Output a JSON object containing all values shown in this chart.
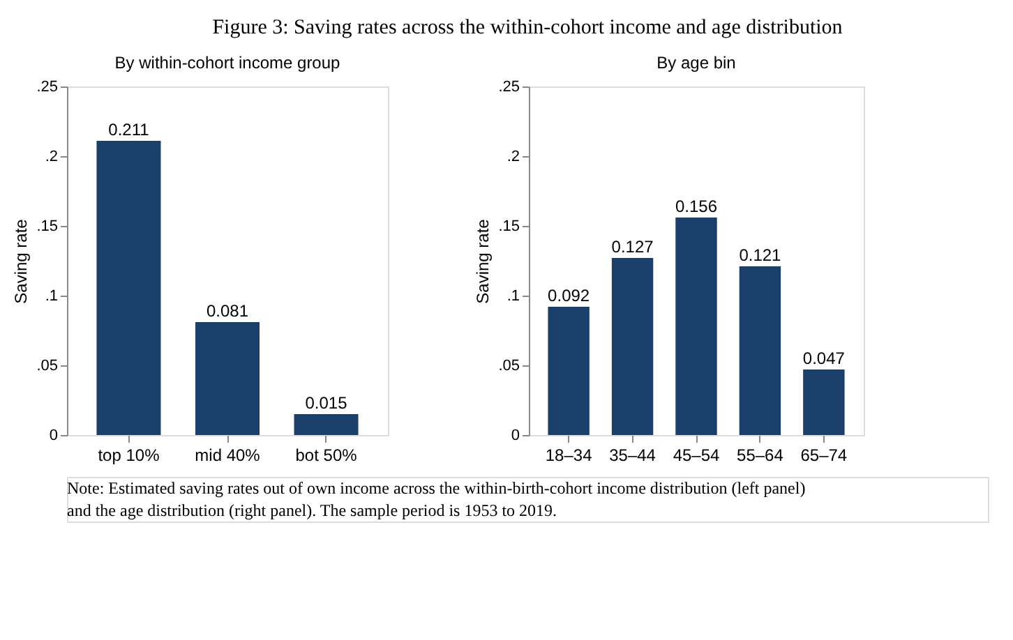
{
  "chart_data": [
    {
      "type": "bar",
      "title": "Figure 3: Saving rates across the within-cohort income and age distribution",
      "subtitle": "By within-cohort income group",
      "ylabel": "Saving rate",
      "categories": [
        "top 10%",
        "mid 40%",
        "bot 50%"
      ],
      "values": [
        0.211,
        0.081,
        0.015
      ],
      "color": "#1a3f6b",
      "data_labels": true,
      "ylim": [
        0,
        0.25
      ],
      "yticks": [
        {
          "value": 0,
          "label": "0"
        },
        {
          "value": 0.05,
          "label": ".05"
        },
        {
          "value": 0.1,
          "label": ".1"
        },
        {
          "value": 0.15,
          "label": ".15"
        },
        {
          "value": 0.2,
          "label": ".2"
        },
        {
          "value": 0.25,
          "label": ".25"
        }
      ],
      "grid": false
    },
    {
      "type": "bar",
      "subtitle": "By age bin",
      "ylabel": "Saving rate",
      "categories": [
        "18–34",
        "35–44",
        "45–54",
        "55–64",
        "65–74"
      ],
      "values": [
        0.092,
        0.127,
        0.156,
        0.121,
        0.047
      ],
      "color": "#1a3f6b",
      "data_labels": true,
      "ylim": [
        0,
        0.25
      ],
      "yticks": [
        {
          "value": 0,
          "label": "0"
        },
        {
          "value": 0.05,
          "label": ".05"
        },
        {
          "value": 0.1,
          "label": ".1"
        },
        {
          "value": 0.15,
          "label": ".15"
        },
        {
          "value": 0.2,
          "label": ".2"
        },
        {
          "value": 0.25,
          "label": ".25"
        }
      ],
      "grid": false,
      "annotations": [
        "Note: Estimated saving rates out of own income across the within-birth-cohort income distribution (left panel) and the age distribution (right panel). The sample period is 1953 to 2019."
      ]
    }
  ]
}
